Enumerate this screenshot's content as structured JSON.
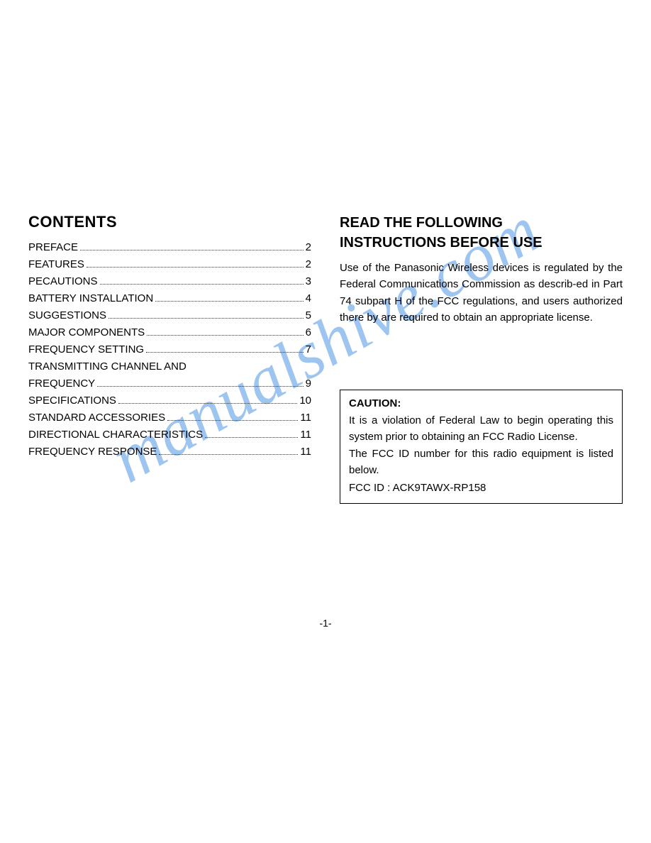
{
  "watermark": {
    "text": "manualshive.com",
    "color": "#6aa7e8"
  },
  "left": {
    "heading": "CONTENTS",
    "toc": [
      {
        "label": "PREFACE",
        "page": "2"
      },
      {
        "label": "FEATURES",
        "page": "2"
      },
      {
        "label": "PECAUTIONS",
        "page": "3"
      },
      {
        "label": "BATTERY INSTALLATION",
        "page": "4"
      },
      {
        "label": "SUGGESTIONS",
        "page": "5"
      },
      {
        "label": "MAJOR COMPONENTS",
        "page": "6"
      },
      {
        "label": "FREQUENCY SETTING",
        "page": "7"
      },
      {
        "label": "TRANSMITTING CHANNEL AND",
        "page": ""
      },
      {
        "label": "FREQUENCY",
        "page": "9"
      },
      {
        "label": "SPECIFICATIONS",
        "page": "10"
      },
      {
        "label": "STANDARD ACCESSORIES",
        "page": "11"
      },
      {
        "label": "DIRECTIONAL CHARACTERISTICS",
        "page": "11"
      },
      {
        "label": "FREQUENCY RESPONSE",
        "page": "11"
      }
    ]
  },
  "right": {
    "heading_line1": "READ THE FOLLOWING",
    "heading_line2": "INSTRUCTIONS BEFORE USE",
    "body": "Use of the Panasonic Wireless devices is regulated by the Federal Communications Commission as describ-ed in Part 74 subpart H of the FCC regulations, and users authorized there by are required to obtain an appropriate license.",
    "caution": {
      "title": "CAUTION:",
      "line1": "It is a violation of Federal Law to begin operating this system prior to obtaining an FCC Radio License.",
      "line2": "The FCC ID number for this radio equipment is listed below.",
      "fcc": "FCC ID : ACK9TAWX-RP158"
    }
  },
  "page_number": "-1-"
}
